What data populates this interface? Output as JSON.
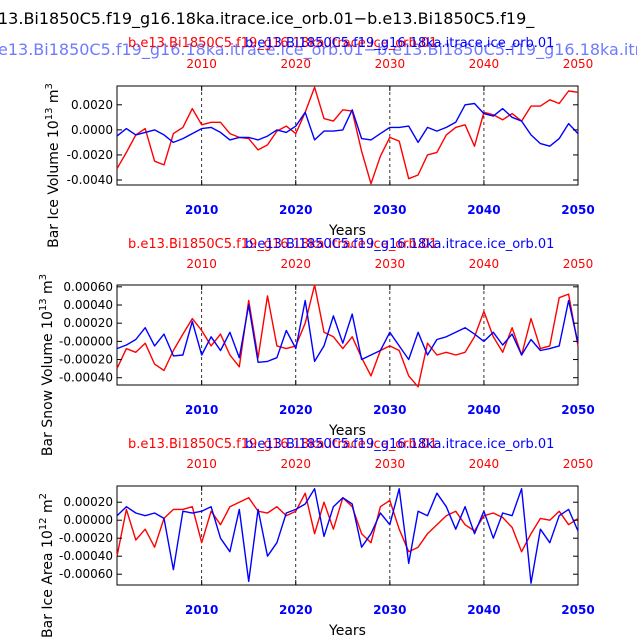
{
  "header": {
    "title_black": "13.Bi1850C5.f19_g16.18ka.itrace.ice_orb.01−b.e13.Bi1850C5.f19_",
    "title_blue": "e13.Bi1850C5.f19_g16.18ka.itrace.ice_orb.01−b.e13.Bi1850C5.f19_g16.18ka.itra"
  },
  "colors": {
    "series_a": "#ff0000",
    "series_b": "#0000ff",
    "axis": "#000000",
    "grid": "#000000"
  },
  "chart_data": [
    {
      "type": "line",
      "title_red": "b.e13.Bi1850C5.f19_g16.18ka.itrace.ice_orb.01",
      "title_blue": "b.e13.Bi1850C5.f19_g16.18ka.itrace.ice_orb.01",
      "ylabel": "Bar Ice Volume 10^13 m^3",
      "ylabel_main": "Bar Ice Volume 10",
      "ylabel_exp": "13",
      "ylabel_unit": "m",
      "ylabel_unit_exp": "3",
      "xlabel": "Years",
      "xlim": [
        2001,
        2050
      ],
      "ylim": [
        -0.0044,
        0.0035
      ],
      "yticks": [
        0.002,
        0.0,
        -0.002,
        -0.004
      ],
      "ytick_labels": [
        "0.0020",
        "0.0000",
        "-0.0020",
        "-0.0040"
      ],
      "xticks": [
        2010,
        2020,
        2030,
        2040,
        2050
      ],
      "xtick_labels": [
        "2010",
        "2020",
        "2030",
        "2040",
        "2050"
      ],
      "x": [
        2001,
        2002,
        2003,
        2004,
        2005,
        2006,
        2007,
        2008,
        2009,
        2010,
        2011,
        2012,
        2013,
        2014,
        2015,
        2016,
        2017,
        2018,
        2019,
        2020,
        2021,
        2022,
        2023,
        2024,
        2025,
        2026,
        2027,
        2028,
        2029,
        2030,
        2031,
        2032,
        2033,
        2034,
        2035,
        2036,
        2037,
        2038,
        2039,
        2040,
        2041,
        2042,
        2043,
        2044,
        2045,
        2046,
        2047,
        2048,
        2049,
        2050
      ],
      "series": [
        {
          "name": "red",
          "values": [
            -0.0031,
            -0.0018,
            -0.0004,
            0.0001,
            -0.0025,
            -0.0028,
            -0.0003,
            0.0002,
            0.0017,
            0.0004,
            0.0006,
            0.0006,
            -0.0003,
            -0.0006,
            -0.0007,
            -0.0016,
            -0.0012,
            -0.0001,
            0.0003,
            -0.0003,
            0.0014,
            0.0034,
            0.0009,
            0.0007,
            0.0016,
            0.0015,
            -0.0017,
            -0.0043,
            -0.0021,
            -0.0006,
            -0.0009,
            -0.0039,
            -0.0036,
            -0.002,
            -0.0018,
            -0.0004,
            0.0002,
            0.0004,
            -0.0013,
            0.0014,
            0.0012,
            0.0008,
            0.0013,
            0.0007,
            0.0019,
            0.0019,
            0.0024,
            0.0021,
            0.0031,
            0.003
          ]
        },
        {
          "name": "blue",
          "values": [
            -0.0005,
            0.0001,
            -0.0004,
            -0.0002,
            0.0,
            -0.0004,
            -0.001,
            -0.0007,
            -0.0003,
            0.0001,
            0.0002,
            -0.0002,
            -0.0008,
            -0.0006,
            -0.0006,
            -0.0008,
            -0.0005,
            0.0,
            -0.0002,
            0.0003,
            0.0014,
            -0.0008,
            -0.0001,
            -0.0001,
            0.0,
            0.0016,
            -0.0007,
            -0.0008,
            -0.0003,
            0.0002,
            0.0002,
            0.0003,
            -0.001,
            0.0002,
            -0.0001,
            0.0002,
            0.0006,
            0.002,
            0.0021,
            0.0013,
            0.0011,
            0.0017,
            0.001,
            0.0007,
            -0.0004,
            -0.0011,
            -0.0013,
            -0.0007,
            0.0005,
            -0.0003
          ]
        }
      ]
    },
    {
      "type": "line",
      "title_red": "b.e13.Bi1850C5.f19_g16.18ka.itrace.ice_orb.01",
      "title_blue": "b.e13.Bi1850C5.f19_g16.18ka.itrace.ice_orb.01",
      "ylabel": "Bar Snow Volume 10^13 m^3",
      "ylabel_main": "Bar Snow Volume 10",
      "ylabel_exp": "13",
      "ylabel_unit": "m",
      "ylabel_unit_exp": "3",
      "xlabel": "Years",
      "xlim": [
        2001,
        2050
      ],
      "ylim": [
        -0.00048,
        0.00062
      ],
      "yticks": [
        0.0006,
        0.0004,
        0.0002,
        0.0,
        -0.0002,
        -0.0004
      ],
      "ytick_labels": [
        "0.00060",
        "0.00040",
        "0.00020",
        "-0.00000",
        "-0.00020",
        "-0.00040"
      ],
      "xticks": [
        2010,
        2020,
        2030,
        2040,
        2050
      ],
      "xtick_labels": [
        "2010",
        "2020",
        "2030",
        "2040",
        "2050"
      ],
      "x": [
        2001,
        2002,
        2003,
        2004,
        2005,
        2006,
        2007,
        2008,
        2009,
        2010,
        2011,
        2012,
        2013,
        2014,
        2015,
        2016,
        2017,
        2018,
        2019,
        2020,
        2021,
        2022,
        2023,
        2024,
        2025,
        2026,
        2027,
        2028,
        2029,
        2030,
        2031,
        2032,
        2033,
        2034,
        2035,
        2036,
        2037,
        2038,
        2039,
        2040,
        2041,
        2042,
        2043,
        2044,
        2045,
        2046,
        2047,
        2048,
        2049,
        2050
      ],
      "series": [
        {
          "name": "red",
          "values": [
            -0.0003,
            -8e-05,
            -0.00012,
            -2e-05,
            -0.00025,
            -0.00032,
            -0.0001,
            8e-05,
            0.00025,
            0.00012,
            -5e-05,
            8e-05,
            -0.00015,
            -0.00028,
            0.00045,
            -0.00018,
            0.0005,
            -5e-05,
            -8e-05,
            -5e-05,
            0.0002,
            0.00062,
            0.0001,
            5e-05,
            -8e-05,
            5e-05,
            -0.00018,
            -0.00038,
            -0.0001,
            -5e-05,
            -0.0001,
            -0.00038,
            -0.0005,
            -2e-05,
            -0.00015,
            -0.00012,
            -0.00015,
            -0.00012,
            5e-05,
            0.00033,
            5e-05,
            -0.00012,
            0.00015,
            -0.00015,
            0.00025,
            -8e-05,
            -5e-05,
            0.00048,
            0.00052,
            -5e-05
          ]
        },
        {
          "name": "blue",
          "values": [
            -8e-05,
            -4e-05,
            2e-05,
            0.00015,
            -5e-05,
            8e-05,
            -0.00016,
            -0.00015,
            0.00022,
            -0.00015,
            5e-05,
            -0.0001,
            0.0001,
            -0.00018,
            0.0004,
            -0.00023,
            -0.00022,
            -0.00018,
            0.00012,
            -8e-05,
            0.00045,
            -0.00022,
            -5e-05,
            0.00028,
            -2e-05,
            0.0003,
            -0.0002,
            -0.00015,
            -0.0001,
            0.0001,
            -5e-05,
            -0.0002,
            0.0001,
            -0.00015,
            2e-05,
            5e-05,
            0.0001,
            0.00015,
            8e-05,
            0.0,
            0.0001,
            -4e-05,
            8e-05,
            -0.00015,
            2e-05,
            -0.0001,
            -8e-05,
            -5e-05,
            0.00045,
            -2e-05
          ]
        }
      ]
    },
    {
      "type": "line",
      "title_red": "b.e13.Bi1850C5.f19_g16.18ka.itrace.ice_orb.01",
      "title_blue": "b.e13.Bi1850C5.f19_g16.18ka.itrace.ice_orb.01",
      "ylabel": "Bar Ice Area 10^12 m^2",
      "ylabel_main": "Bar Ice Area 10",
      "ylabel_exp": "12",
      "ylabel_unit": "m",
      "ylabel_unit_exp": "2",
      "xlabel": "Years",
      "xlim": [
        2001,
        2050
      ],
      "ylim": [
        -0.00072,
        0.00038
      ],
      "yticks": [
        0.0002,
        0.0,
        -0.0002,
        -0.0004,
        -0.0006
      ],
      "ytick_labels": [
        "0.00020",
        "0.00000",
        "-0.00020",
        "-0.00040",
        "-0.00060"
      ],
      "xticks": [
        2010,
        2020,
        2030,
        2040,
        2050
      ],
      "xtick_labels": [
        "2010",
        "2020",
        "2030",
        "2040",
        "2050"
      ],
      "x": [
        2001,
        2002,
        2003,
        2004,
        2005,
        2006,
        2007,
        2008,
        2009,
        2010,
        2011,
        2012,
        2013,
        2014,
        2015,
        2016,
        2017,
        2018,
        2019,
        2020,
        2021,
        2022,
        2023,
        2024,
        2025,
        2026,
        2027,
        2028,
        2029,
        2030,
        2031,
        2032,
        2033,
        2034,
        2035,
        2036,
        2037,
        2038,
        2039,
        2040,
        2041,
        2042,
        2043,
        2044,
        2045,
        2046,
        2047,
        2048,
        2049,
        2050
      ],
      "series": [
        {
          "name": "red",
          "values": [
            -0.0004,
            0.00012,
            -0.00022,
            -0.0001,
            -0.0003,
            2e-05,
            0.00012,
            0.00012,
            0.00015,
            -0.00025,
            0.0001,
            -5e-05,
            0.00015,
            0.0002,
            0.00025,
            0.0001,
            8e-05,
            0.00015,
            5e-05,
            0.0001,
            0.0003,
            -0.00015,
            0.0002,
            -0.0001,
            0.00025,
            0.00015,
            -0.00015,
            -0.00025,
            0.00015,
            0.00022,
            -0.0001,
            -0.00035,
            -0.0003,
            -0.00015,
            -5e-05,
            5e-05,
            0.0001,
            -5e-05,
            -0.00012,
            5e-05,
            8e-05,
            3e-05,
            -8e-05,
            -0.00035,
            -0.00015,
            2e-05,
            0.0,
            0.0001,
            -5e-05,
            2e-05
          ]
        },
        {
          "name": "blue",
          "values": [
            5e-05,
            0.00015,
            8e-05,
            5e-05,
            8e-05,
            2e-05,
            -0.00055,
            0.0001,
            8e-05,
            0.0001,
            0.00015,
            -0.0002,
            -0.00035,
            0.00012,
            -0.00068,
            0.00012,
            -0.0004,
            -0.00025,
            8e-05,
            0.00012,
            0.00018,
            0.00035,
            -0.00018,
            0.00015,
            0.00025,
            0.00018,
            -0.0003,
            -0.00015,
            8e-05,
            -5e-05,
            0.00035,
            -0.00048,
            0.0001,
            5e-05,
            0.0003,
            0.00015,
            -0.0001,
            0.00015,
            -0.00015,
            0.0001,
            -0.0002,
            8e-05,
            5e-05,
            0.00035,
            -0.0007,
            -0.0001,
            -0.00025,
            5e-05,
            0.00012,
            -0.00012
          ]
        }
      ]
    }
  ]
}
